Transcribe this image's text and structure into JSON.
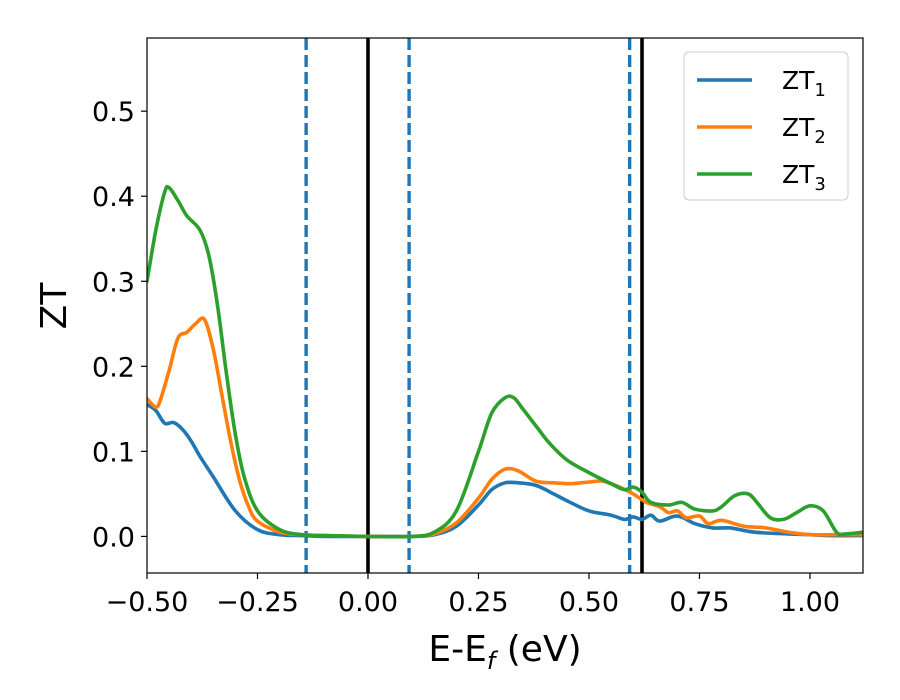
{
  "chart_data": {
    "type": "line",
    "xlabel": "E-E",
    "xlabel_sub": "f",
    "xlabel_unit": " (eV)",
    "ylabel": "ZT",
    "xlim": [
      -0.5,
      1.12
    ],
    "ylim": [
      -0.043,
      0.586
    ],
    "grid": false,
    "legend_position": "top-right",
    "x_ticks": [
      -0.5,
      -0.25,
      0.0,
      0.25,
      0.5,
      0.75,
      1.0
    ],
    "x_tick_labels": [
      "−0.50",
      "−0.25",
      "0.00",
      "0.25",
      "0.50",
      "0.75",
      "1.00"
    ],
    "y_ticks": [
      0.0,
      0.1,
      0.2,
      0.3,
      0.4,
      0.5
    ],
    "y_tick_labels": [
      "0.0",
      "0.1",
      "0.2",
      "0.3",
      "0.4",
      "0.5"
    ],
    "vlines": [
      {
        "x": -0.14,
        "style": "dashed",
        "color": "#1f77b4"
      },
      {
        "x": 0.0,
        "style": "solid",
        "color": "#000000"
      },
      {
        "x": 0.093,
        "style": "dashed",
        "color": "#1f77b4"
      },
      {
        "x": 0.592,
        "style": "dashed",
        "color": "#1f77b4"
      },
      {
        "x": 0.62,
        "style": "solid",
        "color": "#000000"
      }
    ],
    "series": [
      {
        "name": "ZT",
        "name_sub": "1",
        "color": "#1f77b4",
        "x": [
          -0.5,
          -0.48,
          -0.46,
          -0.44,
          -0.42,
          -0.4,
          -0.38,
          -0.35,
          -0.3,
          -0.25,
          -0.2,
          -0.15,
          -0.1,
          0.0,
          0.1,
          0.15,
          0.2,
          0.25,
          0.28,
          0.31,
          0.34,
          0.38,
          0.42,
          0.45,
          0.5,
          0.55,
          0.58,
          0.6,
          0.62,
          0.64,
          0.66,
          0.7,
          0.74,
          0.78,
          0.82,
          0.86,
          0.9,
          0.95,
          1.0,
          1.05,
          1.12
        ],
        "y": [
          0.155,
          0.148,
          0.133,
          0.134,
          0.126,
          0.112,
          0.094,
          0.07,
          0.03,
          0.008,
          0.002,
          0.001,
          0.0,
          0.0,
          0.0,
          0.002,
          0.012,
          0.037,
          0.055,
          0.063,
          0.063,
          0.06,
          0.05,
          0.042,
          0.03,
          0.025,
          0.02,
          0.023,
          0.02,
          0.025,
          0.018,
          0.024,
          0.015,
          0.01,
          0.01,
          0.006,
          0.004,
          0.003,
          0.002,
          0.001,
          0.001
        ]
      },
      {
        "name": "ZT",
        "name_sub": "2",
        "color": "#ff7f0e",
        "x": [
          -0.5,
          -0.48,
          -0.47,
          -0.45,
          -0.43,
          -0.41,
          -0.39,
          -0.37,
          -0.35,
          -0.33,
          -0.31,
          -0.29,
          -0.27,
          -0.25,
          -0.2,
          -0.15,
          -0.1,
          0.0,
          0.1,
          0.15,
          0.2,
          0.25,
          0.28,
          0.31,
          0.34,
          0.38,
          0.42,
          0.46,
          0.5,
          0.53,
          0.56,
          0.6,
          0.63,
          0.66,
          0.68,
          0.7,
          0.72,
          0.75,
          0.77,
          0.8,
          0.85,
          0.9,
          0.95,
          1.0,
          1.05,
          1.12
        ],
        "y": [
          0.162,
          0.152,
          0.16,
          0.195,
          0.233,
          0.24,
          0.25,
          0.255,
          0.22,
          0.165,
          0.11,
          0.065,
          0.035,
          0.018,
          0.005,
          0.002,
          0.001,
          0.0,
          0.0,
          0.003,
          0.016,
          0.045,
          0.067,
          0.079,
          0.077,
          0.065,
          0.063,
          0.062,
          0.064,
          0.065,
          0.06,
          0.05,
          0.04,
          0.035,
          0.028,
          0.03,
          0.022,
          0.024,
          0.015,
          0.019,
          0.012,
          0.01,
          0.005,
          0.002,
          0.002,
          0.002
        ]
      },
      {
        "name": "ZT",
        "name_sub": "3",
        "color": "#2ca02c",
        "x": [
          -0.5,
          -0.48,
          -0.46,
          -0.45,
          -0.43,
          -0.41,
          -0.38,
          -0.36,
          -0.34,
          -0.32,
          -0.3,
          -0.28,
          -0.25,
          -0.2,
          -0.15,
          -0.1,
          0.0,
          0.1,
          0.15,
          0.2,
          0.25,
          0.28,
          0.31,
          0.33,
          0.35,
          0.38,
          0.41,
          0.45,
          0.5,
          0.55,
          0.58,
          0.6,
          0.62,
          0.64,
          0.68,
          0.71,
          0.74,
          0.78,
          0.8,
          0.83,
          0.86,
          0.88,
          0.91,
          0.94,
          0.97,
          1.0,
          1.03,
          1.06,
          1.08,
          1.12
        ],
        "y": [
          0.3,
          0.36,
          0.405,
          0.41,
          0.395,
          0.377,
          0.36,
          0.33,
          0.27,
          0.19,
          0.12,
          0.07,
          0.03,
          0.008,
          0.002,
          0.001,
          0.0,
          0.0,
          0.005,
          0.03,
          0.1,
          0.145,
          0.163,
          0.163,
          0.15,
          0.13,
          0.11,
          0.09,
          0.075,
          0.062,
          0.055,
          0.058,
          0.052,
          0.04,
          0.037,
          0.04,
          0.032,
          0.03,
          0.035,
          0.048,
          0.05,
          0.04,
          0.022,
          0.02,
          0.028,
          0.036,
          0.03,
          0.005,
          0.003,
          0.005
        ]
      }
    ]
  }
}
